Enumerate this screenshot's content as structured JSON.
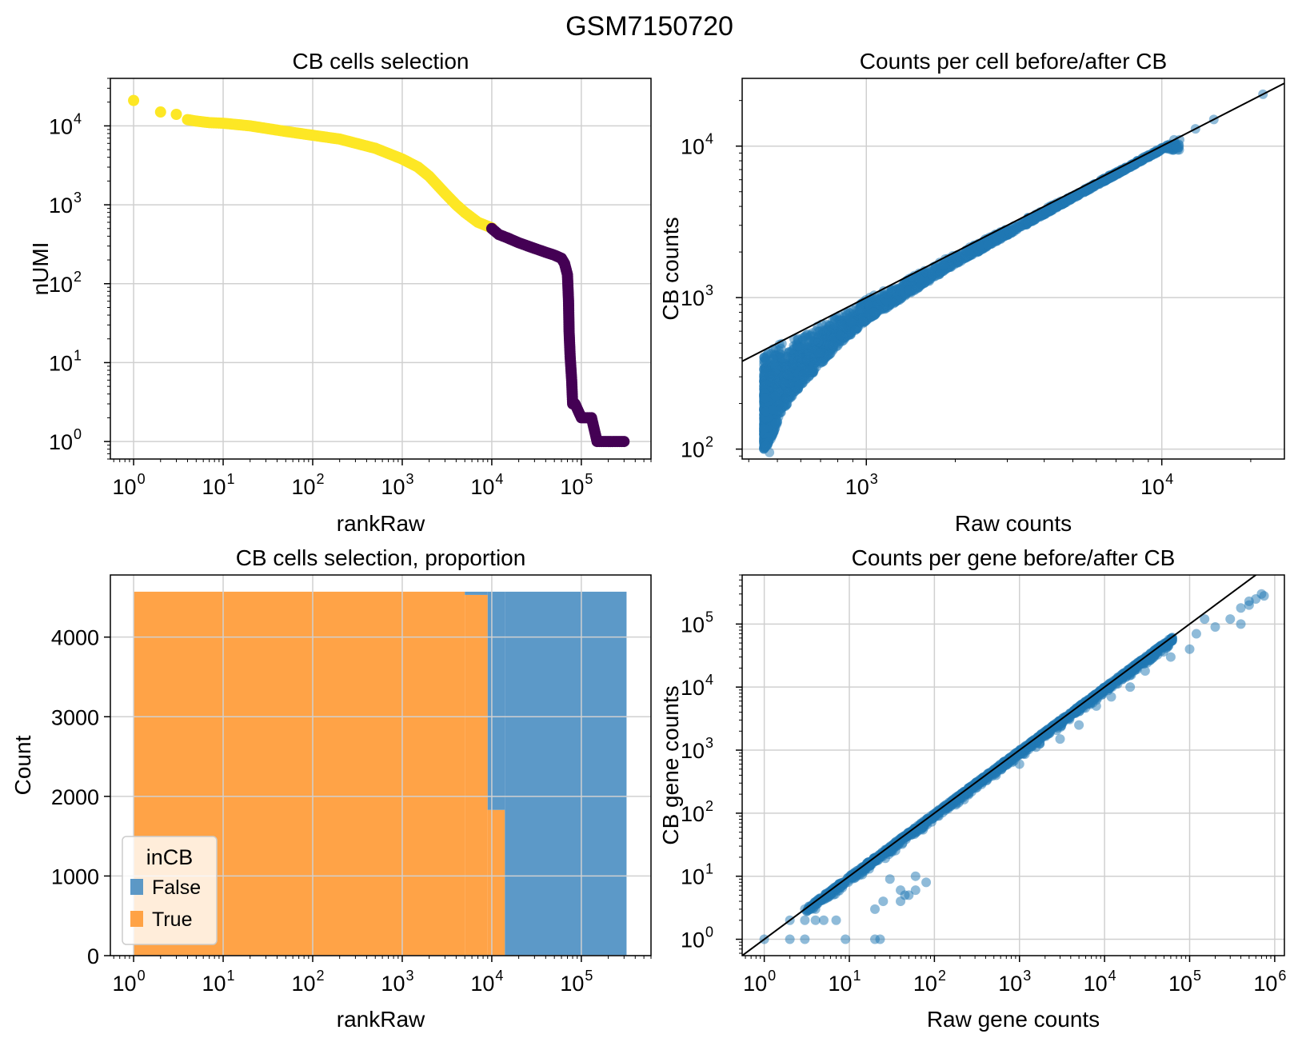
{
  "figure": {
    "suptitle": "GSM7150720"
  },
  "colors": {
    "true": "#fde725",
    "false": "#440154",
    "hist_true": "#ff9933",
    "hist_false": "#4a8ec2",
    "scatter": "#1f77b4"
  },
  "chart_data": [
    {
      "id": "cb-cells-selection",
      "type": "scatter",
      "title": "CB cells selection",
      "xlabel": "rankRaw",
      "ylabel": "nUMI",
      "xscale": "log",
      "yscale": "log",
      "xlim": [
        0.55,
        600000
      ],
      "ylim": [
        0.6,
        40000
      ],
      "xticks": [
        {
          "base": "10",
          "exp": "0"
        },
        {
          "base": "10",
          "exp": "1"
        },
        {
          "base": "10",
          "exp": "2"
        },
        {
          "base": "10",
          "exp": "3"
        },
        {
          "base": "10",
          "exp": "4"
        },
        {
          "base": "10",
          "exp": "5"
        }
      ],
      "yticks": [
        {
          "base": "10",
          "exp": "0"
        },
        {
          "base": "10",
          "exp": "1"
        },
        {
          "base": "10",
          "exp": "2"
        },
        {
          "base": "10",
          "exp": "3"
        },
        {
          "base": "10",
          "exp": "4"
        }
      ],
      "grid": true,
      "series": [
        {
          "in_cb": true,
          "points": [
            [
              1,
              21000
            ],
            [
              2,
              15000
            ],
            [
              3,
              14000
            ],
            [
              4,
              12000
            ],
            [
              5,
              11500
            ],
            [
              7,
              11000
            ],
            [
              10,
              10800
            ],
            [
              20,
              10000
            ],
            [
              50,
              8500
            ],
            [
              100,
              7600
            ],
            [
              200,
              6800
            ],
            [
              500,
              5200
            ],
            [
              1000,
              3800
            ],
            [
              1500,
              3000
            ],
            [
              2000,
              2300
            ],
            [
              3000,
              1400
            ],
            [
              4000,
              1000
            ],
            [
              5000,
              800
            ],
            [
              7000,
              600
            ],
            [
              10000,
              510
            ]
          ]
        },
        {
          "in_cb": false,
          "points": [
            [
              10000,
              500
            ],
            [
              12000,
              420
            ],
            [
              15000,
              380
            ],
            [
              20000,
              330
            ],
            [
              30000,
              280
            ],
            [
              40000,
              250
            ],
            [
              50000,
              230
            ],
            [
              60000,
              210
            ],
            [
              65000,
              180
            ],
            [
              70000,
              130
            ],
            [
              72000,
              60
            ],
            [
              73000,
              25
            ],
            [
              75000,
              12
            ],
            [
              78000,
              6
            ],
            [
              80000,
              3
            ],
            [
              85000,
              3
            ],
            [
              100000,
              2
            ],
            [
              130000,
              2
            ],
            [
              150000,
              1
            ],
            [
              200000,
              1
            ],
            [
              300000,
              1
            ]
          ]
        }
      ]
    },
    {
      "id": "counts-per-cell",
      "type": "scatter",
      "title": "Counts per cell before/after CB",
      "xlabel": "Raw counts",
      "ylabel": "CB counts",
      "xscale": "log",
      "yscale": "log",
      "xlim": [
        380,
        26000
      ],
      "ylim": [
        86,
        28000
      ],
      "xticks": [
        {
          "base": "10",
          "exp": "3"
        },
        {
          "base": "10",
          "exp": "4"
        }
      ],
      "yticks": [
        {
          "base": "10",
          "exp": "2"
        },
        {
          "base": "10",
          "exp": "3"
        },
        {
          "base": "10",
          "exp": "4"
        }
      ],
      "grid": true,
      "identity_line": true,
      "upper_edge": [
        [
          450,
          440
        ],
        [
          600,
          580
        ],
        [
          1000,
          980
        ],
        [
          2000,
          1950
        ],
        [
          5000,
          4800
        ],
        [
          10000,
          9800
        ],
        [
          13000,
          12500
        ],
        [
          15000,
          14500
        ],
        [
          22000,
          21500
        ]
      ],
      "lower_edge": [
        [
          450,
          100
        ],
        [
          470,
          110
        ],
        [
          520,
          180
        ],
        [
          600,
          260
        ],
        [
          800,
          480
        ],
        [
          1000,
          700
        ],
        [
          2000,
          1650
        ],
        [
          5000,
          4500
        ],
        [
          10000,
          9400
        ]
      ],
      "outliers": [
        [
          470,
          95
        ],
        [
          11000,
          11000
        ],
        [
          13000,
          13000
        ],
        [
          15000,
          15000
        ],
        [
          22000,
          22000
        ]
      ]
    },
    {
      "id": "cb-cells-selection-proportion",
      "type": "bar",
      "title": "CB cells selection, proportion",
      "xlabel": "rankRaw",
      "ylabel": "Count",
      "xscale": "log",
      "xlim": [
        0.55,
        600000
      ],
      "ylim": [
        0,
        4780
      ],
      "xticks": [
        {
          "base": "10",
          "exp": "0"
        },
        {
          "base": "10",
          "exp": "1"
        },
        {
          "base": "10",
          "exp": "2"
        },
        {
          "base": "10",
          "exp": "3"
        },
        {
          "base": "10",
          "exp": "4"
        },
        {
          "base": "10",
          "exp": "5"
        }
      ],
      "yticks": [
        "0",
        "1000",
        "2000",
        "3000",
        "4000"
      ],
      "grid": true,
      "legend": {
        "title": "inCB",
        "position": "lower-left",
        "entries": [
          "False",
          "True"
        ]
      },
      "bins": [
        {
          "x0": 1,
          "x1": 5000,
          "true": 4570,
          "false": 0
        },
        {
          "x0": 5000,
          "x1": 9000,
          "true": 4530,
          "false": 40
        },
        {
          "x0": 9000,
          "x1": 14000,
          "true": 1830,
          "false": 2740
        },
        {
          "x0": 14000,
          "x1": 320000,
          "true": 0,
          "false": 4570
        }
      ]
    },
    {
      "id": "counts-per-gene",
      "type": "scatter",
      "title": "Counts per gene before/after CB",
      "xlabel": "Raw gene counts",
      "ylabel": "CB gene counts",
      "xscale": "log",
      "yscale": "log",
      "xlim": [
        0.55,
        1300000
      ],
      "ylim": [
        0.55,
        600000
      ],
      "xticks": [
        {
          "base": "10",
          "exp": "0"
        },
        {
          "base": "10",
          "exp": "1"
        },
        {
          "base": "10",
          "exp": "2"
        },
        {
          "base": "10",
          "exp": "3"
        },
        {
          "base": "10",
          "exp": "4"
        },
        {
          "base": "10",
          "exp": "5"
        },
        {
          "base": "10",
          "exp": "6"
        }
      ],
      "yticks": [
        {
          "base": "10",
          "exp": "0"
        },
        {
          "base": "10",
          "exp": "1"
        },
        {
          "base": "10",
          "exp": "2"
        },
        {
          "base": "10",
          "exp": "3"
        },
        {
          "base": "10",
          "exp": "4"
        },
        {
          "base": "10",
          "exp": "5"
        }
      ],
      "grid": true,
      "identity_line": true,
      "band": [
        [
          1,
          1
        ],
        [
          10,
          10
        ],
        [
          100,
          100
        ],
        [
          1000,
          1000
        ],
        [
          10000,
          9500
        ],
        [
          50000,
          45000
        ]
      ],
      "outliers": [
        [
          1,
          1
        ],
        [
          2,
          1
        ],
        [
          3,
          1
        ],
        [
          9,
          1
        ],
        [
          20,
          1
        ],
        [
          23,
          1
        ],
        [
          2,
          2
        ],
        [
          3,
          2
        ],
        [
          4,
          2
        ],
        [
          5,
          2
        ],
        [
          7,
          2
        ],
        [
          3,
          3
        ],
        [
          4,
          3
        ],
        [
          40,
          4
        ],
        [
          45,
          5
        ],
        [
          50,
          5
        ],
        [
          40,
          6
        ],
        [
          60,
          6
        ],
        [
          25,
          4
        ],
        [
          20,
          3
        ],
        [
          60,
          10
        ],
        [
          30,
          9
        ],
        [
          80,
          8
        ],
        [
          100000,
          40000
        ],
        [
          200000,
          90000
        ],
        [
          300000,
          120000
        ],
        [
          400000,
          100000
        ],
        [
          500000,
          200000
        ],
        [
          600000,
          250000
        ],
        [
          700000,
          300000
        ],
        [
          750000,
          280000
        ],
        [
          500000,
          230000
        ],
        [
          400000,
          180000
        ],
        [
          120000,
          70000
        ],
        [
          150000,
          120000
        ],
        [
          30000,
          18000
        ],
        [
          60000,
          30000
        ],
        [
          8000,
          5000
        ],
        [
          20000,
          10000
        ],
        [
          3000,
          1500
        ],
        [
          1000,
          600
        ],
        [
          5000,
          2500
        ],
        [
          12000,
          7000
        ]
      ]
    }
  ]
}
